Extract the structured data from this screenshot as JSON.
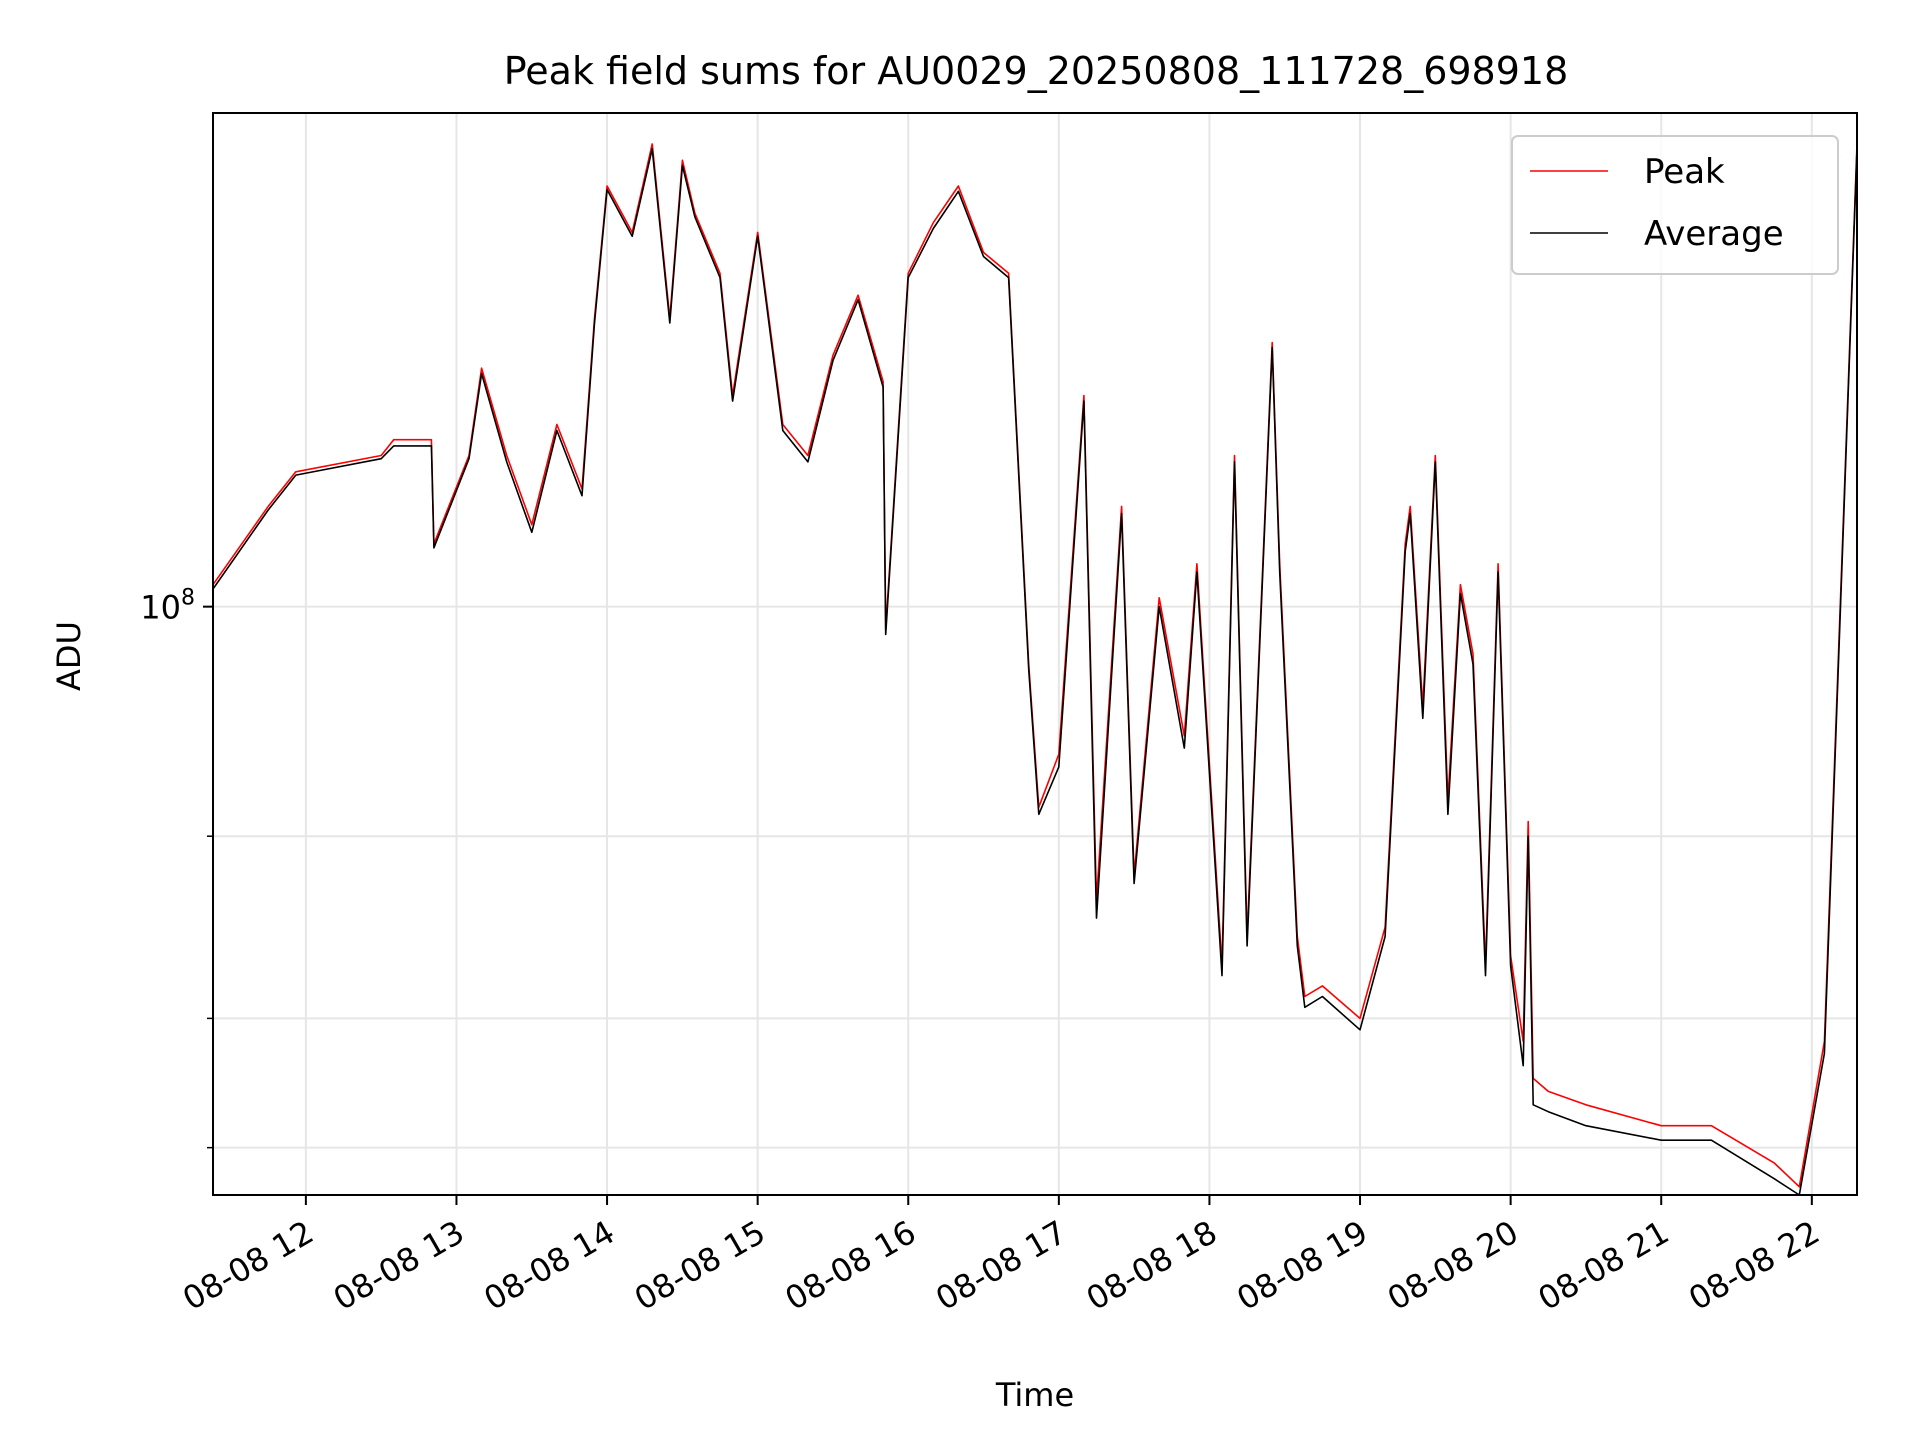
{
  "chart_data": {
    "type": "line",
    "title": "Peak field sums for AU0029_20250808_111728_698918",
    "xlabel": "Time",
    "ylabel": "ADU",
    "yscale": "log",
    "ylim": [
      27000000,
      300000000
    ],
    "xlim": [
      "2025-08-08 11:23",
      "2025-08-08 22:18"
    ],
    "grid": true,
    "legend_position": "upper right",
    "x_ticks": [
      {
        "value": "2025-08-08 12:00",
        "label": "08-08 12"
      },
      {
        "value": "2025-08-08 13:00",
        "label": "08-08 13"
      },
      {
        "value": "2025-08-08 14:00",
        "label": "08-08 14"
      },
      {
        "value": "2025-08-08 15:00",
        "label": "08-08 15"
      },
      {
        "value": "2025-08-08 16:00",
        "label": "08-08 16"
      },
      {
        "value": "2025-08-08 17:00",
        "label": "08-08 17"
      },
      {
        "value": "2025-08-08 18:00",
        "label": "08-08 18"
      },
      {
        "value": "2025-08-08 19:00",
        "label": "08-08 19"
      },
      {
        "value": "2025-08-08 20:00",
        "label": "08-08 20"
      },
      {
        "value": "2025-08-08 21:00",
        "label": "08-08 21"
      },
      {
        "value": "2025-08-08 22:00",
        "label": "08-08 22"
      }
    ],
    "y_major_ticks": [
      {
        "value": 100000000,
        "base": "10",
        "exp": "8"
      }
    ],
    "y_minor_ticks": [
      30000000,
      40000000,
      60000000
    ],
    "x": [
      "2025-08-08 11:23",
      "2025-08-08 11:45",
      "2025-08-08 11:56",
      "2025-08-08 12:30",
      "2025-08-08 12:35",
      "2025-08-08 12:50",
      "2025-08-08 12:51",
      "2025-08-08 13:05",
      "2025-08-08 13:10",
      "2025-08-08 13:20",
      "2025-08-08 13:30",
      "2025-08-08 13:40",
      "2025-08-08 13:50",
      "2025-08-08 13:55",
      "2025-08-08 14:00",
      "2025-08-08 14:10",
      "2025-08-08 14:18",
      "2025-08-08 14:25",
      "2025-08-08 14:30",
      "2025-08-08 14:35",
      "2025-08-08 14:45",
      "2025-08-08 14:50",
      "2025-08-08 15:00",
      "2025-08-08 15:10",
      "2025-08-08 15:20",
      "2025-08-08 15:30",
      "2025-08-08 15:40",
      "2025-08-08 15:50",
      "2025-08-08 15:51",
      "2025-08-08 16:00",
      "2025-08-08 16:10",
      "2025-08-08 16:20",
      "2025-08-08 16:30",
      "2025-08-08 16:40",
      "2025-08-08 16:48",
      "2025-08-08 16:52",
      "2025-08-08 17:00",
      "2025-08-08 17:10",
      "2025-08-08 17:15",
      "2025-08-08 17:25",
      "2025-08-08 17:30",
      "2025-08-08 17:40",
      "2025-08-08 17:50",
      "2025-08-08 17:55",
      "2025-08-08 18:05",
      "2025-08-08 18:10",
      "2025-08-08 18:15",
      "2025-08-08 18:25",
      "2025-08-08 18:28",
      "2025-08-08 18:35",
      "2025-08-08 18:38",
      "2025-08-08 18:45",
      "2025-08-08 19:00",
      "2025-08-08 19:10",
      "2025-08-08 19:18",
      "2025-08-08 19:20",
      "2025-08-08 19:25",
      "2025-08-08 19:30",
      "2025-08-08 19:35",
      "2025-08-08 19:40",
      "2025-08-08 19:45",
      "2025-08-08 19:50",
      "2025-08-08 19:55",
      "2025-08-08 20:00",
      "2025-08-08 20:05",
      "2025-08-08 20:07",
      "2025-08-08 20:09",
      "2025-08-08 20:15",
      "2025-08-08 20:30",
      "2025-08-08 21:00",
      "2025-08-08 21:20",
      "2025-08-08 21:45",
      "2025-08-08 21:55",
      "2025-08-08 22:05",
      "2025-08-08 22:18"
    ],
    "series": [
      {
        "name": "Peak",
        "color": "#ff0000",
        "values": [
          105000000,
          125000000,
          135000000,
          140000000,
          145000000,
          145000000,
          115000000,
          140000000,
          170000000,
          140000000,
          120000000,
          150000000,
          130000000,
          190000000,
          255000000,
          230000000,
          280000000,
          190000000,
          270000000,
          240000000,
          210000000,
          160000000,
          230000000,
          150000000,
          140000000,
          175000000,
          200000000,
          165000000,
          95000000,
          210000000,
          235000000,
          255000000,
          220000000,
          210000000,
          88000000,
          64000000,
          72000000,
          160000000,
          52000000,
          125000000,
          55000000,
          102000000,
          75000000,
          110000000,
          45000000,
          140000000,
          48000000,
          180000000,
          110000000,
          48000000,
          42000000,
          43000000,
          40000000,
          49000000,
          115000000,
          125000000,
          80000000,
          140000000,
          65000000,
          105000000,
          90000000,
          45000000,
          110000000,
          46000000,
          38000000,
          62000000,
          35000000,
          34000000,
          33000000,
          31500000,
          31500000,
          29000000,
          27500000,
          38000000,
          280000000
        ]
      },
      {
        "name": "Average",
        "color": "#000000",
        "values": [
          104000000,
          124000000,
          134000000,
          139000000,
          143000000,
          143000000,
          114000000,
          139000000,
          168000000,
          138000000,
          118000000,
          148000000,
          128000000,
          188000000,
          253000000,
          228000000,
          277000000,
          188000000,
          267000000,
          238000000,
          208000000,
          158000000,
          228000000,
          148000000,
          138000000,
          173000000,
          198000000,
          163000000,
          94000000,
          208000000,
          232000000,
          252000000,
          218000000,
          208000000,
          87000000,
          63000000,
          70000000,
          158000000,
          50000000,
          123000000,
          54000000,
          100000000,
          73000000,
          108000000,
          44000000,
          138000000,
          47000000,
          178000000,
          108000000,
          47000000,
          41000000,
          42000000,
          39000000,
          48000000,
          113000000,
          123000000,
          78000000,
          138000000,
          63000000,
          103000000,
          88000000,
          44000000,
          108000000,
          45000000,
          36000000,
          60000000,
          33000000,
          32500000,
          31500000,
          30500000,
          30500000,
          28000000,
          27000000,
          37000000,
          277000000
        ]
      }
    ]
  }
}
